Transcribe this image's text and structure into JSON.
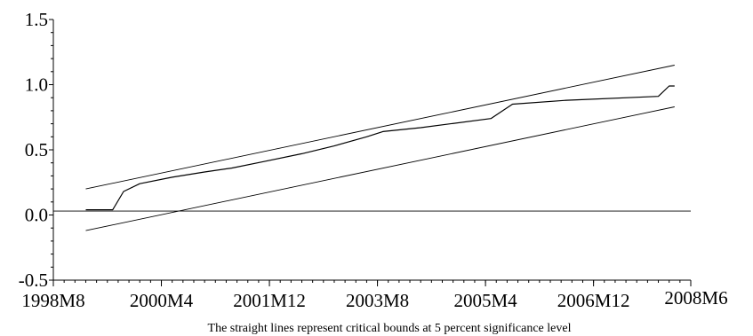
{
  "chart_data": {
    "type": "line",
    "title": "",
    "xlabel": "",
    "ylabel": "",
    "caption": "The straight lines represent critical bounds at 5 percent significance level",
    "x_ticks": [
      "1998M8",
      "2000M4",
      "2001M12",
      "2003M8",
      "2005M4",
      "2006M12",
      "2008M6"
    ],
    "y_ticks": [
      "-0.5",
      "0.0",
      "0.5",
      "1.0",
      "1.5"
    ],
    "xlim": [
      "1998M8",
      "2008M6"
    ],
    "ylim": [
      -0.5,
      1.5
    ],
    "grid": false,
    "series": [
      {
        "role": "upper critical bound",
        "points": [
          [
            "1999M2",
            0.2
          ],
          [
            "2008M3",
            1.15
          ]
        ]
      },
      {
        "role": "statistic",
        "points": [
          [
            "1999M2",
            0.04
          ],
          [
            "1999M7",
            0.04
          ],
          [
            "1999M9",
            0.18
          ],
          [
            "1999M12",
            0.24
          ],
          [
            "2000M6",
            0.29
          ],
          [
            "2000M12",
            0.33
          ],
          [
            "2001M5",
            0.36
          ],
          [
            "2001M11",
            0.41
          ],
          [
            "2002M6",
            0.47
          ],
          [
            "2002M12",
            0.53
          ],
          [
            "2003M6",
            0.6
          ],
          [
            "2003M9",
            0.64
          ],
          [
            "2004M4",
            0.67
          ],
          [
            "2005M5",
            0.74
          ],
          [
            "2005M9",
            0.85
          ],
          [
            "2006M7",
            0.88
          ],
          [
            "2007M12",
            0.91
          ],
          [
            "2008M2",
            0.99
          ],
          [
            "2008M3",
            0.99
          ]
        ]
      },
      {
        "role": "lower critical bound",
        "points": [
          [
            "1999M2",
            -0.12
          ],
          [
            "2008M3",
            0.83
          ]
        ]
      },
      {
        "role": "zero line",
        "points": [
          [
            "1998M8",
            0.03
          ],
          [
            "2008M6",
            0.03
          ]
        ]
      }
    ]
  }
}
